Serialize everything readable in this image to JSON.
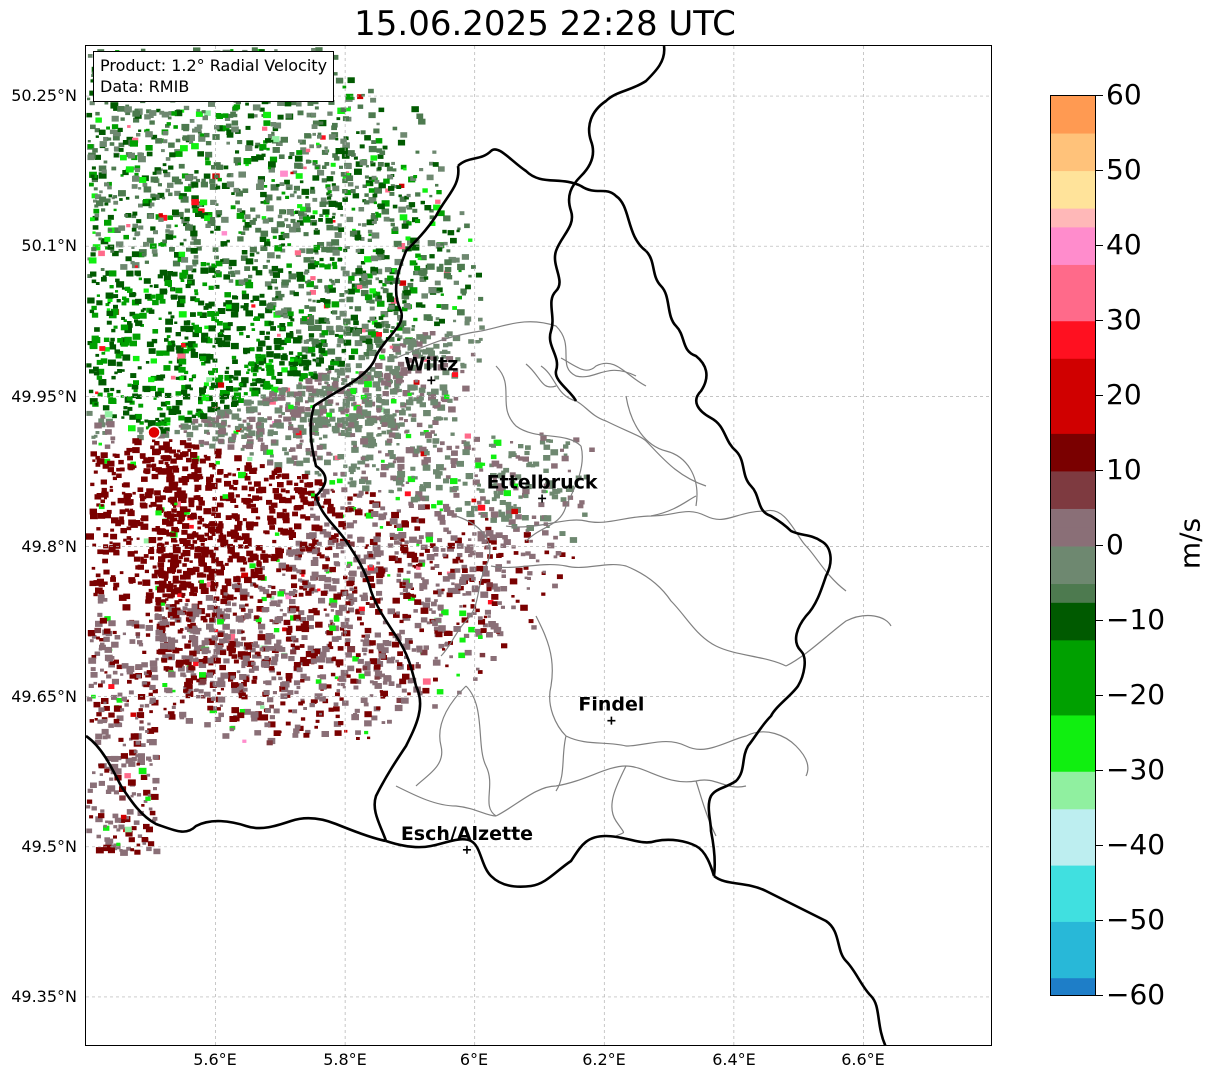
{
  "title": "15.06.2025 22:28 UTC",
  "info": {
    "product": "Product: 1.2° Radial Velocity",
    "data_source": "Data: RMIB"
  },
  "latitude_labels": [
    "50.25°N",
    "50.1°N",
    "49.95°N",
    "49.8°N",
    "49.65°N",
    "49.5°N",
    "49.35°N"
  ],
  "longitude_labels": [
    "5.6°E",
    "5.8°E",
    "6°E",
    "6.2°E",
    "6.4°E",
    "6.6°E"
  ],
  "map_extent": {
    "lon_min": 5.4,
    "lon_max": 6.8,
    "lat_min": 49.3,
    "lat_max": 50.3
  },
  "radar_site": {
    "lon": 5.505,
    "lat": 49.914,
    "color": "#e00000"
  },
  "cities": [
    {
      "name": "Wiltz",
      "lon": 5.933,
      "lat": 49.966
    },
    {
      "name": "Ettelbruck",
      "lon": 6.104,
      "lat": 49.848
    },
    {
      "name": "Findel",
      "lon": 6.211,
      "lat": 49.626
    },
    {
      "name": "Esch/Alzette",
      "lon": 5.988,
      "lat": 49.497
    }
  ],
  "colorbar": {
    "unit": "m/s",
    "ticks": [
      "60",
      "50",
      "40",
      "30",
      "20",
      "10",
      "0",
      "−10",
      "−20",
      "−30",
      "−40",
      "−50",
      "−60"
    ],
    "range": [
      -60,
      60
    ],
    "stops": [
      {
        "v": 60,
        "c": "#ff9a52"
      },
      {
        "v": 52,
        "c": "#ffc27a"
      },
      {
        "v": 47,
        "c": "#ffe39a"
      },
      {
        "v": 44,
        "c": "#ffb8b8"
      },
      {
        "v": 40,
        "c": "#ff8ccc"
      },
      {
        "v": 34,
        "c": "#ff6a8a"
      },
      {
        "v": 28,
        "c": "#ff1020"
      },
      {
        "v": 20,
        "c": "#d00000"
      },
      {
        "v": 12,
        "c": "#7a0000"
      },
      {
        "v": 8,
        "c": "#7e3a40"
      },
      {
        "v": 3,
        "c": "#8a6f77"
      },
      {
        "v": -2,
        "c": "#6e8870"
      },
      {
        "v": -6,
        "c": "#4d7a4f"
      },
      {
        "v": -8,
        "c": "#005a00"
      },
      {
        "v": -18,
        "c": "#00a000"
      },
      {
        "v": -28,
        "c": "#10ef10"
      },
      {
        "v": -33,
        "c": "#90f0a0"
      },
      {
        "v": -36,
        "c": "#bdeef0"
      },
      {
        "v": -48,
        "c": "#40e0e0"
      },
      {
        "v": -54,
        "c": "#28b8d8"
      },
      {
        "v": -60,
        "c": "#1e7ec8"
      }
    ]
  },
  "colors": {
    "border_country": "#000000",
    "border_canton": "#808080",
    "grid": "#b0b0b0",
    "inbound_green": "#007000",
    "neutral_green": "#6a8a6c",
    "neutral_mauve": "#8a6a74",
    "outbound_red": "#7a0000"
  }
}
